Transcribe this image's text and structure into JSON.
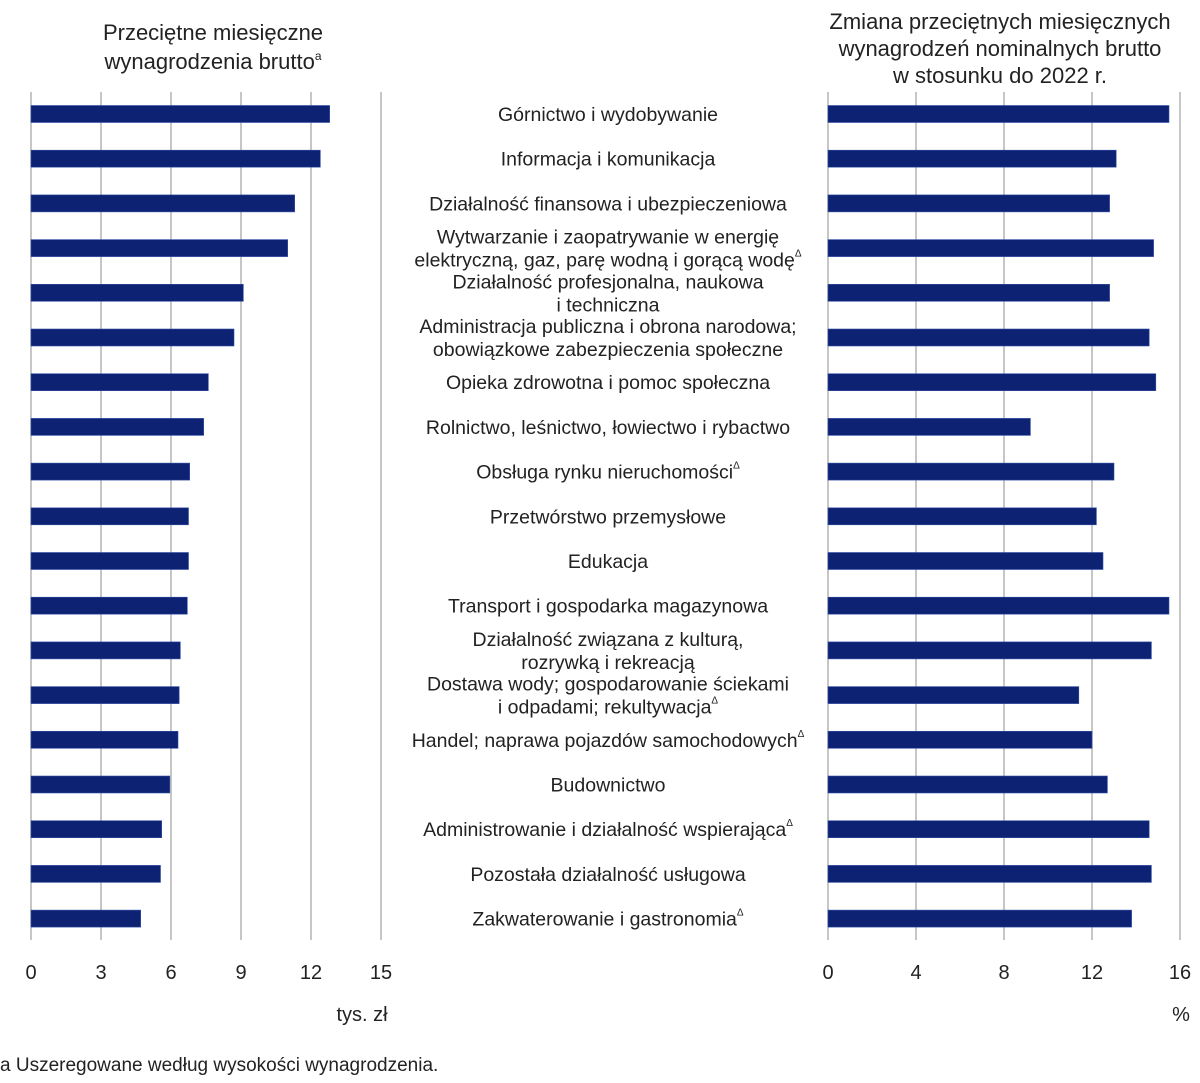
{
  "chart_data": [
    {
      "type": "bar",
      "orientation": "horizontal",
      "title": [
        "Przeciętne miesięczne",
        "wynagrodzenia brutto"
      ],
      "title_superscript": "a",
      "xlabel": "tys. zł",
      "xlim": [
        0,
        15
      ],
      "xticks": [
        "0",
        "3",
        "6",
        "9",
        "12",
        "15"
      ],
      "grid": true,
      "values": [
        12.8,
        12.4,
        11.3,
        11.0,
        9.1,
        8.7,
        7.6,
        7.4,
        6.8,
        6.75,
        6.75,
        6.7,
        6.4,
        6.35,
        6.3,
        5.95,
        5.6,
        5.55,
        4.7
      ]
    },
    {
      "type": "bar",
      "orientation": "horizontal",
      "title": [
        "Zmiana przeciętnych miesięcznych",
        "wynagrodzeń nominalnych brutto",
        "w stosunku do 2022 r."
      ],
      "xlabel": "%",
      "xlim": [
        0,
        16
      ],
      "xticks": [
        "0",
        "4",
        "8",
        "12",
        "16"
      ],
      "grid": true,
      "values": [
        15.5,
        13.1,
        12.8,
        14.8,
        12.8,
        14.6,
        14.9,
        9.2,
        13.0,
        12.2,
        12.5,
        15.5,
        14.7,
        11.4,
        12.0,
        12.7,
        14.6,
        14.7,
        13.8
      ]
    }
  ],
  "categories": [
    {
      "lines": [
        "Górnictwo i wydobywanie"
      ],
      "mark": ""
    },
    {
      "lines": [
        "Informacja i komunikacja"
      ],
      "mark": ""
    },
    {
      "lines": [
        "Działalność finansowa i ubezpieczeniowa"
      ],
      "mark": ""
    },
    {
      "lines": [
        "Wytwarzanie i zaopatrywanie w energię",
        "elektryczną, gaz, parę wodną i gorącą wodę"
      ],
      "mark": "Δ"
    },
    {
      "lines": [
        "Działalność profesjonalna, naukowa",
        "i techniczna"
      ],
      "mark": ""
    },
    {
      "lines": [
        "Administracja publiczna i obrona narodowa;",
        "obowiązkowe zabezpieczenia społeczne"
      ],
      "mark": ""
    },
    {
      "lines": [
        "Opieka zdrowotna i pomoc społeczna"
      ],
      "mark": ""
    },
    {
      "lines": [
        "Rolnictwo, leśnictwo, łowiectwo i rybactwo"
      ],
      "mark": ""
    },
    {
      "lines": [
        "Obsługa rynku nieruchomości"
      ],
      "mark": "Δ"
    },
    {
      "lines": [
        "Przetwórstwo przemysłowe"
      ],
      "mark": ""
    },
    {
      "lines": [
        "Edukacja"
      ],
      "mark": ""
    },
    {
      "lines": [
        "Transport i gospodarka magazynowa"
      ],
      "mark": ""
    },
    {
      "lines": [
        "Działalność związana z kulturą,",
        "rozrywką i rekreacją"
      ],
      "mark": ""
    },
    {
      "lines": [
        "Dostawa wody; gospodarowanie ściekami",
        "i odpadami; rekultywacja"
      ],
      "mark": "Δ"
    },
    {
      "lines": [
        "Handel; naprawa pojazdów samochodowych"
      ],
      "mark": "Δ"
    },
    {
      "lines": [
        "Budownictwo"
      ],
      "mark": ""
    },
    {
      "lines": [
        "Administrowanie i działalność wspierająca"
      ],
      "mark": "Δ"
    },
    {
      "lines": [
        "Pozostała działalność usługowa"
      ],
      "mark": ""
    },
    {
      "lines": [
        "Zakwaterowanie i gastronomia"
      ],
      "mark": "Δ"
    }
  ],
  "footnote": "a Uszeregowane według wysokości wynagrodzenia.",
  "colors": {
    "bar": "#0d2272",
    "grid": "#b4b4b4",
    "text": "#222222"
  }
}
